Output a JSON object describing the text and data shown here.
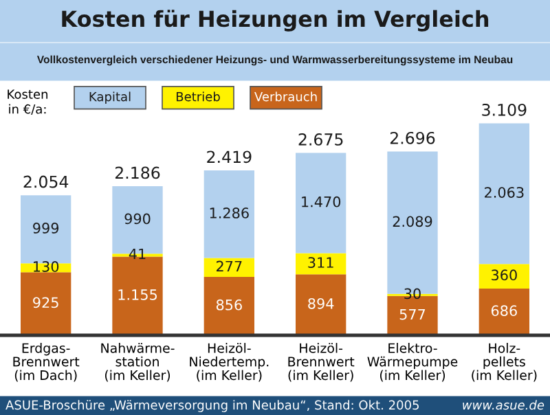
{
  "chart_data": {
    "type": "bar",
    "stacked": true,
    "title": "Kosten für Heizungen im Vergleich",
    "subtitle": "Vollkostenvergleich verschiedener Heizungs- und Warmwasserbereitungssysteme im Neubau",
    "categories": [
      "Erdgas-\nBrennwert\n(im Dach)",
      "Nahwärme-\nstation\n(im Keller)",
      "Heizöl-\nNiedertemp.\n(im Keller)",
      "Heizöl-\nBrennwert\n(im Keller)",
      "Elektro-\nWärmepumpe\n(im Keller)",
      "Holz-\npellets\n(im Keller)"
    ],
    "series": [
      {
        "name": "Verbrauch",
        "color": "#c8651b",
        "values": [
          925,
          1155,
          856,
          894,
          577,
          686
        ],
        "value_labels": [
          "925",
          "1.155",
          "856",
          "894",
          "577",
          "686"
        ]
      },
      {
        "name": "Betrieb",
        "color": "#fff200",
        "values": [
          130,
          41,
          277,
          311,
          30,
          360
        ],
        "value_labels": [
          "130",
          "41",
          "277",
          "311",
          "30",
          "360"
        ]
      },
      {
        "name": "Kapital",
        "color": "#b3d1ee",
        "values": [
          999,
          990,
          1286,
          1470,
          2089,
          2063
        ],
        "value_labels": [
          "999",
          "990",
          "1.286",
          "1.470",
          "2.089",
          "2.063"
        ]
      }
    ],
    "totals": [
      "2.054",
      "2.186",
      "2.419",
      "2.675",
      "2.696",
      "3.109"
    ],
    "legend": "top left",
    "legend_title": "Kosten\nin €/a:",
    "annotations": [
      "ASUE-Broschüre „Wärmeversorgung im Neubau“, Stand: Okt. 2005",
      "www.asue.de"
    ]
  }
}
